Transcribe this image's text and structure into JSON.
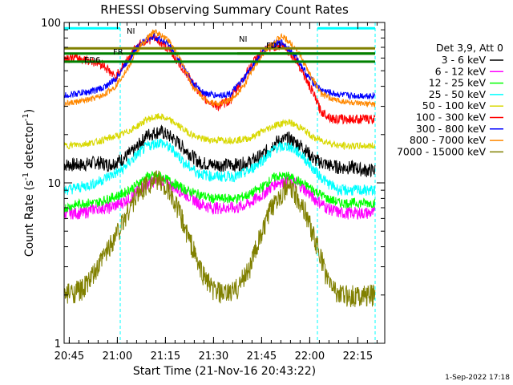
{
  "chart_data": {
    "type": "line",
    "title": "RHESSI Observing Summary Count Rates",
    "xlabel": "Start Time (21-Nov-16 20:43:22)",
    "ylabel_main": "Count Rate (s",
    "ylabel_sup": "-1",
    "ylabel_rest": " detector",
    "ylabel_end": ")",
    "yscale": "log",
    "xlim_minutes": [
      0,
      100
    ],
    "ylim": [
      1,
      100
    ],
    "x_ticks": [
      {
        "label": "20:45",
        "minute": 1.6
      },
      {
        "label": "21:00",
        "minute": 16.6
      },
      {
        "label": "21:15",
        "minute": 31.6
      },
      {
        "label": "21:30",
        "minute": 46.6
      },
      {
        "label": "21:45",
        "minute": 61.6
      },
      {
        "label": "22:00",
        "minute": 76.6
      },
      {
        "label": "22:15",
        "minute": 91.6
      }
    ],
    "y_ticks": [
      {
        "label": "1",
        "value": 1
      },
      {
        "label": "10",
        "value": 10
      },
      {
        "label": "100",
        "value": 100
      }
    ],
    "legend_title": "Det 3,9, Att 0",
    "legend_position": "right",
    "series": [
      {
        "name": "3 - 6 keV",
        "color": "#000000",
        "x": [
          0,
          6,
          10,
          14,
          18,
          22,
          26,
          30,
          34,
          38,
          42,
          46,
          50,
          54,
          58,
          62,
          66,
          70,
          74,
          78,
          82,
          86,
          90,
          94,
          97
        ],
        "y": [
          13,
          13,
          13.5,
          13,
          14,
          16,
          20,
          21,
          19,
          16,
          13.5,
          13,
          13,
          13,
          13.5,
          15,
          18,
          19,
          17,
          14,
          13,
          12.5,
          12.5,
          12,
          12
        ]
      },
      {
        "name": "6 - 12 keV",
        "color": "#ff00ff",
        "x": [
          0,
          6,
          10,
          14,
          18,
          22,
          26,
          30,
          34,
          38,
          42,
          46,
          50,
          54,
          58,
          62,
          66,
          70,
          74,
          78,
          82,
          86,
          90,
          94,
          97
        ],
        "y": [
          6.5,
          6.5,
          7,
          7,
          7.5,
          8.5,
          10,
          10.5,
          9.5,
          8.5,
          7.5,
          7,
          7,
          7,
          7.5,
          8.5,
          10,
          10.5,
          9.5,
          8,
          7,
          6.5,
          6.5,
          6.5,
          6.5
        ]
      },
      {
        "name": "12 - 25 keV",
        "color": "#00ff00",
        "x": [
          0,
          6,
          10,
          14,
          18,
          22,
          26,
          30,
          34,
          38,
          42,
          46,
          50,
          54,
          58,
          62,
          66,
          70,
          74,
          78,
          82,
          86,
          90,
          94,
          97
        ],
        "y": [
          7,
          7.5,
          7.5,
          8,
          8.5,
          9.5,
          11,
          11,
          10,
          9,
          8.5,
          8,
          8,
          8,
          8.5,
          9.5,
          11,
          11,
          10,
          9,
          8,
          7.5,
          7.5,
          7.5,
          7.5
        ]
      },
      {
        "name": "25 - 50 keV",
        "color": "#00ffff",
        "x": [
          0,
          6,
          10,
          14,
          18,
          22,
          26,
          30,
          34,
          38,
          42,
          46,
          50,
          54,
          58,
          62,
          66,
          70,
          74,
          78,
          82,
          86,
          90,
          94,
          97
        ],
        "y": [
          9,
          9.5,
          10,
          11,
          12,
          14.5,
          17,
          18,
          16,
          13,
          11.5,
          11,
          11,
          11,
          12,
          14,
          16.5,
          17,
          15,
          12,
          10,
          9,
          9,
          9,
          9
        ]
      },
      {
        "name": "50 - 100 keV",
        "color": "#d8d800",
        "x": [
          0,
          6,
          10,
          14,
          18,
          22,
          26,
          30,
          34,
          38,
          42,
          46,
          50,
          54,
          58,
          62,
          66,
          70,
          74,
          78,
          82,
          86,
          90,
          94,
          97
        ],
        "y": [
          17,
          17.5,
          18,
          19,
          20,
          22,
          25,
          26,
          24,
          21,
          19,
          18.5,
          18.5,
          18.5,
          19,
          21,
          23,
          24,
          22,
          19,
          18,
          17,
          17,
          17,
          17
        ]
      },
      {
        "name": "100 - 300 keV",
        "color": "#ff0000",
        "x": [
          0,
          4,
          8,
          12,
          16,
          20,
          24,
          28,
          32,
          36,
          40,
          44,
          48,
          52,
          56,
          60,
          64,
          68,
          72,
          76,
          80,
          84,
          88,
          92,
          97
        ],
        "y": [
          60,
          60,
          58,
          55,
          45,
          60,
          75,
          80,
          70,
          55,
          42,
          33,
          30,
          33,
          45,
          60,
          70,
          72,
          60,
          42,
          28,
          25,
          25,
          25,
          25
        ]
      },
      {
        "name": "300 - 800 keV",
        "color": "#0000ff",
        "x": [
          0,
          4,
          8,
          12,
          16,
          20,
          24,
          28,
          32,
          36,
          40,
          44,
          48,
          52,
          56,
          60,
          64,
          68,
          72,
          76,
          80,
          84,
          88,
          92,
          97
        ],
        "y": [
          35,
          36,
          37,
          39,
          44,
          58,
          75,
          82,
          75,
          58,
          42,
          36,
          35,
          36,
          44,
          58,
          72,
          75,
          62,
          46,
          38,
          36,
          35,
          35,
          35
        ]
      },
      {
        "name": "800 - 7000 keV",
        "color": "#ff8800",
        "x": [
          0,
          4,
          8,
          12,
          16,
          20,
          24,
          28,
          32,
          36,
          40,
          44,
          48,
          52,
          56,
          60,
          64,
          68,
          72,
          76,
          80,
          84,
          88,
          92,
          97
        ],
        "y": [
          31,
          32,
          33,
          35,
          40,
          52,
          72,
          88,
          80,
          60,
          40,
          33,
          31,
          33,
          40,
          55,
          72,
          82,
          70,
          50,
          36,
          33,
          32,
          31,
          31
        ]
      },
      {
        "name": "7000 - 15000 keV",
        "color": "#808000",
        "x": [
          0,
          6,
          10,
          14,
          18,
          22,
          26,
          30,
          34,
          38,
          42,
          46,
          50,
          54,
          58,
          62,
          66,
          70,
          74,
          78,
          82,
          86,
          90,
          94,
          97
        ],
        "y": [
          2,
          2.2,
          2.8,
          4,
          5.5,
          8,
          10,
          10.5,
          8,
          5,
          3,
          2.2,
          2,
          2.2,
          3,
          5,
          8,
          9.5,
          7.5,
          4.5,
          2.5,
          2,
          2,
          2,
          2
        ]
      }
    ],
    "flag_bars": [
      {
        "label": "NI",
        "color": "#00ffff",
        "segments": [
          [
            0,
            17.5
          ],
          [
            79,
            97
          ]
        ],
        "value": 92
      },
      {
        "label": "FD1",
        "color": "#808000",
        "segments": [
          [
            0,
            97
          ]
        ],
        "value": 69
      },
      {
        "label": "FD2",
        "color": "#808000",
        "segments": [
          [
            54,
            97
          ]
        ],
        "value": 64
      },
      {
        "label": "FR",
        "color": "#008000",
        "segments": [
          [
            0,
            97
          ]
        ],
        "value": 64
      },
      {
        "label": "ED6",
        "color": "#008000",
        "segments": [
          [
            0,
            97
          ]
        ],
        "value": 57
      }
    ],
    "dashed_markers": {
      "color": "#00ffff",
      "minutes": [
        17.5,
        79,
        97
      ]
    },
    "timestamp": "1-Sep-2022 17:18"
  }
}
